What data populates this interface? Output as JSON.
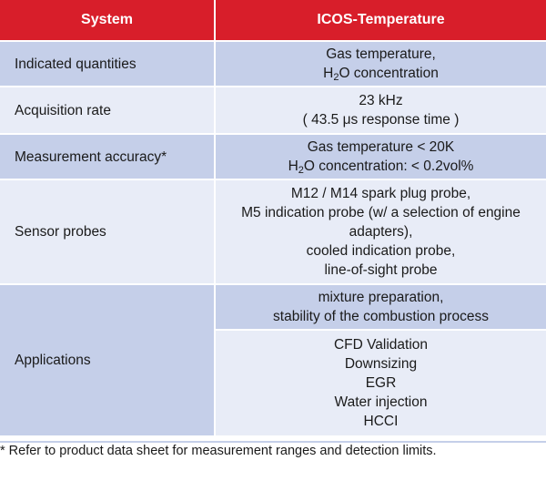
{
  "header": {
    "col1": "System",
    "col2": "ICOS-Temperature"
  },
  "rows": {
    "indicated": {
      "label": "Indicated quantities",
      "line1": "Gas temperature,",
      "line2_pre": "H",
      "line2_sub": "2",
      "line2_post": "O concentration"
    },
    "acquisition": {
      "label": "Acquisition rate",
      "line1": "23 kHz",
      "line2": "( 43.5 μs response time )"
    },
    "accuracy": {
      "label": "Measurement accuracy*",
      "line1": "Gas temperature  < 20K",
      "line2_pre": "H",
      "line2_sub": "2",
      "line2_post": "O concentration:  < 0.2vol%"
    },
    "probes": {
      "label": "Sensor probes",
      "lines": [
        "M12 / M14 spark plug probe,",
        "M5 indication probe (w/ a selection of engine",
        "adapters),",
        "cooled indication probe,",
        "line-of-sight probe"
      ]
    },
    "applications": {
      "label": "Applications",
      "group1": [
        "mixture preparation,",
        "stability of the combustion process"
      ],
      "group2": [
        "CFD Validation",
        "Downsizing",
        "EGR",
        "Water injection",
        "HCCI"
      ]
    }
  },
  "footnote": "* Refer to product data sheet for measurement ranges and detection limits.",
  "colors": {
    "header_bg": "#d81e2a",
    "row_dark": "#c5cfe9",
    "row_light": "#e8ecf7"
  }
}
